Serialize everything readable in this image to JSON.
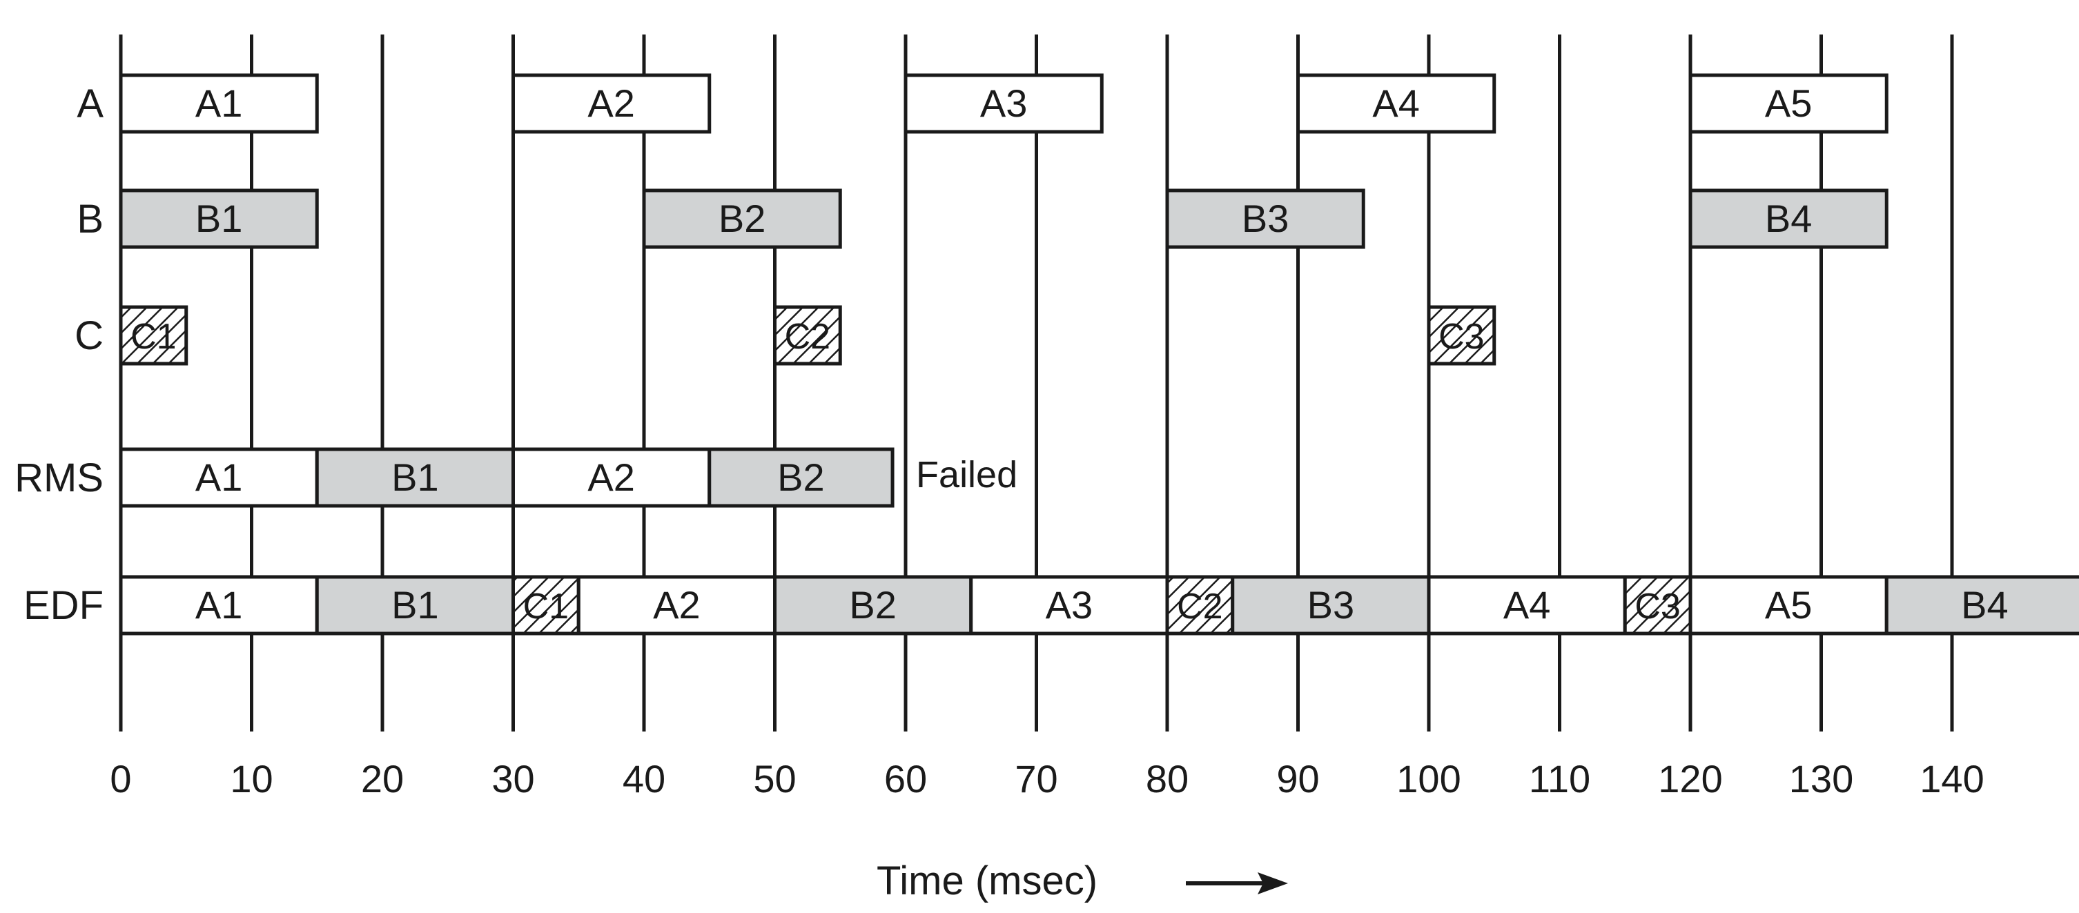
{
  "rows": [
    {
      "key": "A",
      "label": "A"
    },
    {
      "key": "B",
      "label": "B"
    },
    {
      "key": "C",
      "label": "C"
    },
    {
      "key": "RMS",
      "label": "RMS"
    },
    {
      "key": "EDF",
      "label": "EDF"
    }
  ],
  "styles": {
    "A": {
      "fill": "#ffffff"
    },
    "B": {
      "fill": "#d1d3d4"
    },
    "C": {
      "fill": "hatch"
    }
  },
  "colors": {
    "stroke": "#1a1a1a",
    "gray_fill": "#d1d3d4",
    "background": "#ffffff"
  },
  "tasks": {
    "A": [
      {
        "label": "A1",
        "start": 0,
        "end": 15
      },
      {
        "label": "A2",
        "start": 30,
        "end": 45
      },
      {
        "label": "A3",
        "start": 60,
        "end": 75
      },
      {
        "label": "A4",
        "start": 90,
        "end": 105
      },
      {
        "label": "A5",
        "start": 120,
        "end": 135
      }
    ],
    "B": [
      {
        "label": "B1",
        "start": 0,
        "end": 15
      },
      {
        "label": "B2",
        "start": 40,
        "end": 55
      },
      {
        "label": "B3",
        "start": 80,
        "end": 95
      },
      {
        "label": "B4",
        "start": 120,
        "end": 135
      }
    ],
    "C": [
      {
        "label": "C1",
        "start": 0,
        "end": 5
      },
      {
        "label": "C2",
        "start": 50,
        "end": 55
      },
      {
        "label": "C3",
        "start": 100,
        "end": 105
      }
    ]
  },
  "rms": {
    "segments": [
      {
        "label": "A1",
        "type": "A",
        "start": 0,
        "end": 15
      },
      {
        "label": "B1",
        "type": "B",
        "start": 15,
        "end": 30
      },
      {
        "label": "A2",
        "type": "A",
        "start": 30,
        "end": 45
      },
      {
        "label": "B2",
        "type": "B",
        "start": 45,
        "end": 59
      }
    ],
    "note": "Failed"
  },
  "edf": {
    "segments": [
      {
        "label": "A1",
        "type": "A",
        "start": 0,
        "end": 15
      },
      {
        "label": "B1",
        "type": "B",
        "start": 15,
        "end": 30
      },
      {
        "label": "C1",
        "type": "C",
        "start": 30,
        "end": 35
      },
      {
        "label": "A2",
        "type": "A",
        "start": 35,
        "end": 50
      },
      {
        "label": "B2",
        "type": "B",
        "start": 50,
        "end": 65
      },
      {
        "label": "A3",
        "type": "A",
        "start": 65,
        "end": 80
      },
      {
        "label": "C2",
        "type": "C",
        "start": 80,
        "end": 85
      },
      {
        "label": "B3",
        "type": "B",
        "start": 85,
        "end": 100
      },
      {
        "label": "A4",
        "type": "A",
        "start": 100,
        "end": 115
      },
      {
        "label": "C3",
        "type": "C",
        "start": 115,
        "end": 120
      },
      {
        "label": "A5",
        "type": "A",
        "start": 120,
        "end": 135
      },
      {
        "label": "B4",
        "type": "B",
        "start": 135,
        "end": 150
      }
    ]
  },
  "axis": {
    "ticks": [
      0,
      10,
      20,
      30,
      40,
      50,
      60,
      70,
      80,
      90,
      100,
      110,
      120,
      130,
      140
    ],
    "gridlines": [
      0,
      10,
      20,
      30,
      40,
      50,
      60,
      70,
      80,
      90,
      100,
      110,
      120,
      130,
      140
    ],
    "range": [
      0,
      150
    ],
    "title": "Time (msec)",
    "arrow_icon": "right-arrow-icon"
  }
}
